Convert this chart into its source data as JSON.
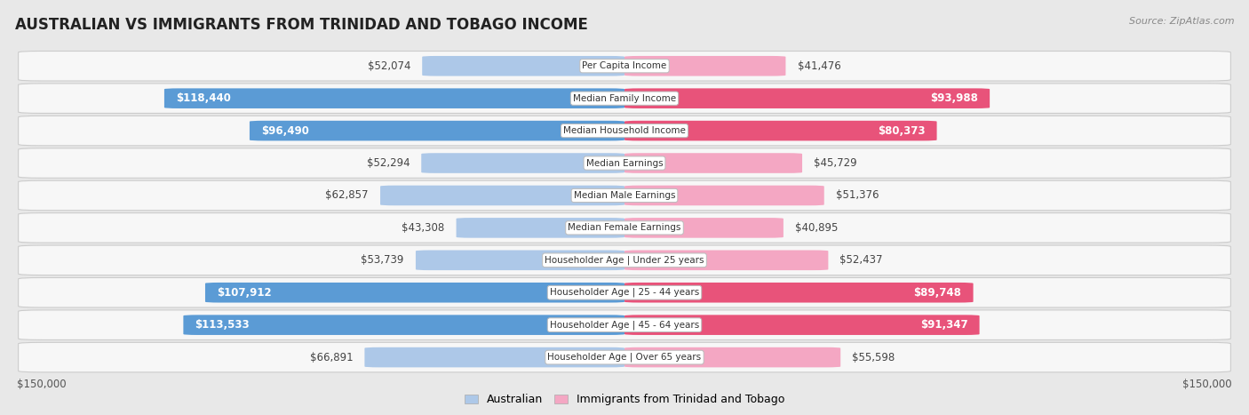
{
  "title": "AUSTRALIAN VS IMMIGRANTS FROM TRINIDAD AND TOBAGO INCOME",
  "source": "Source: ZipAtlas.com",
  "categories": [
    "Per Capita Income",
    "Median Family Income",
    "Median Household Income",
    "Median Earnings",
    "Median Male Earnings",
    "Median Female Earnings",
    "Householder Age | Under 25 years",
    "Householder Age | 25 - 44 years",
    "Householder Age | 45 - 64 years",
    "Householder Age | Over 65 years"
  ],
  "australian_values": [
    52074,
    118440,
    96490,
    52294,
    62857,
    43308,
    53739,
    107912,
    113533,
    66891
  ],
  "immigrant_values": [
    41476,
    93988,
    80373,
    45729,
    51376,
    40895,
    52437,
    89748,
    91347,
    55598
  ],
  "australian_labels": [
    "$52,074",
    "$118,440",
    "$96,490",
    "$52,294",
    "$62,857",
    "$43,308",
    "$53,739",
    "$107,912",
    "$113,533",
    "$66,891"
  ],
  "immigrant_labels": [
    "$41,476",
    "$93,988",
    "$80,373",
    "$45,729",
    "$51,376",
    "$40,895",
    "$52,437",
    "$89,748",
    "$91,347",
    "$55,598"
  ],
  "max_value": 150000,
  "australian_color_light": "#adc8e8",
  "australian_color_dark": "#5b9bd5",
  "immigrant_color_light": "#f4a7c3",
  "immigrant_color_dark": "#e8537a",
  "threshold_for_dark": 80000,
  "bar_height": 0.62,
  "background_color": "#e8e8e8",
  "row_bg": "#f7f7f7",
  "label_fontsize": 8.5,
  "title_fontsize": 12,
  "legend_fontsize": 9,
  "cat_fontsize": 7.5
}
